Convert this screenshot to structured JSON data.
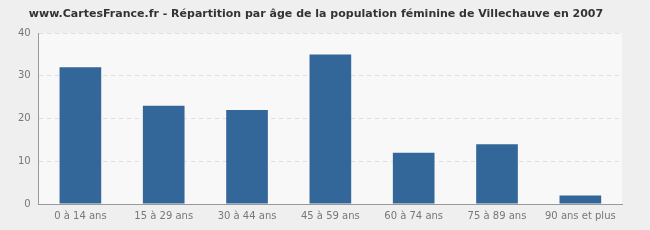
{
  "chart_data": {
    "type": "bar",
    "title": "www.CartesFrance.fr - Répartition par âge de la population féminine de Villechauve en 2007",
    "categories": [
      "0 à 14 ans",
      "15 à 29 ans",
      "30 à 44 ans",
      "45 à 59 ans",
      "60 à 74 ans",
      "75 à 89 ans",
      "90 ans et plus"
    ],
    "values": [
      32,
      23,
      22,
      35,
      12,
      14,
      2
    ],
    "color": "#336699",
    "ylim": [
      0,
      40
    ],
    "yticks": [
      0,
      10,
      20,
      30,
      40
    ],
    "grid": true
  }
}
